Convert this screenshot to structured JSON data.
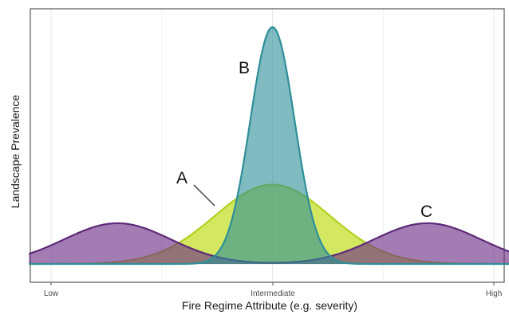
{
  "chart_data": {
    "type": "area",
    "xlabel": "Fire Regime Attribute (e.g. severity)",
    "ylabel": "Landscape Prevalence",
    "x_ticks": [
      {
        "value": 0,
        "label": "Low"
      },
      {
        "value": 0.5,
        "label": "Intermediate"
      },
      {
        "value": 1,
        "label": "High"
      }
    ],
    "xlim": [
      -0.05,
      1.05
    ],
    "ylim": [
      0,
      1.05
    ],
    "grid": true,
    "legend": "none",
    "series": [
      {
        "name": "A",
        "kind": "single-peak broad",
        "mean": 0.5,
        "sd": 0.13,
        "peak": 0.335,
        "fill": "#c2df23",
        "stroke": "#b4cf1f",
        "fill_opacity": 0.72
      },
      {
        "name": "C",
        "kind": "bimodal",
        "peaks_at": [
          0.15,
          0.85
        ],
        "sd": 0.12,
        "peak": 0.172,
        "fill": "#6a2c86",
        "stroke": "#5f2a78",
        "fill_opacity": 0.62
      },
      {
        "name": "B",
        "kind": "single-peak narrow",
        "mean": 0.5,
        "sd": 0.05,
        "peak": 1.0,
        "fill": "#2a8e96",
        "stroke": "#2f8f99",
        "fill_opacity": 0.6
      }
    ],
    "annotations": [
      "A",
      "B",
      "C"
    ]
  }
}
